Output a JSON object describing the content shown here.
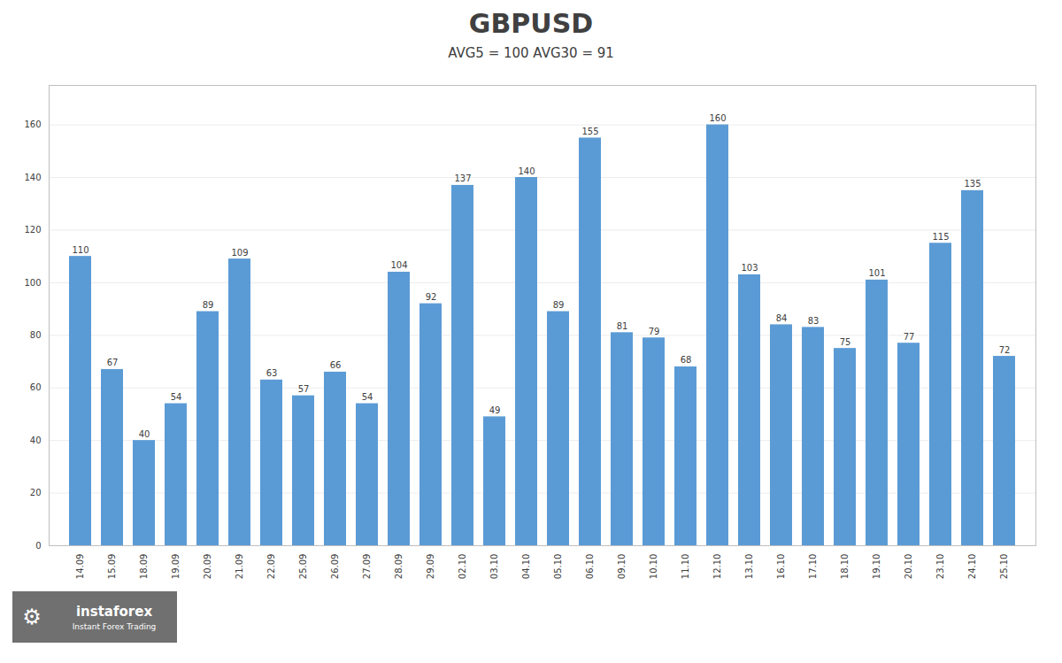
{
  "chart_data": {
    "type": "bar",
    "title": "GBPUSD",
    "subtitle": "AVG5 = 100 AVG30 = 91",
    "categories": [
      "14.09",
      "15.09",
      "18.09",
      "19.09",
      "20.09",
      "21.09",
      "22.09",
      "25.09",
      "26.09",
      "27.09",
      "28.09",
      "29.09",
      "02.10",
      "03.10",
      "04.10",
      "05.10",
      "06.10",
      "09.10",
      "10.10",
      "11.10",
      "12.10",
      "13.10",
      "16.10",
      "17.10",
      "18.10",
      "19.10",
      "20.10",
      "23.10",
      "24.10",
      "25.10"
    ],
    "values": [
      110,
      67,
      40,
      54,
      89,
      109,
      63,
      57,
      66,
      54,
      104,
      92,
      137,
      49,
      140,
      89,
      155,
      81,
      79,
      68,
      160,
      103,
      84,
      83,
      75,
      101,
      77,
      115,
      135,
      72
    ],
    "color": "#5B9BD5",
    "ylim": [
      0,
      175
    ],
    "yticks": [
      0,
      20,
      40,
      60,
      80,
      100,
      120,
      140,
      160
    ],
    "grid": true,
    "data_labels": true,
    "annotations": [
      "⚙",
      "instaforex",
      "Instant Forex Trading"
    ]
  }
}
